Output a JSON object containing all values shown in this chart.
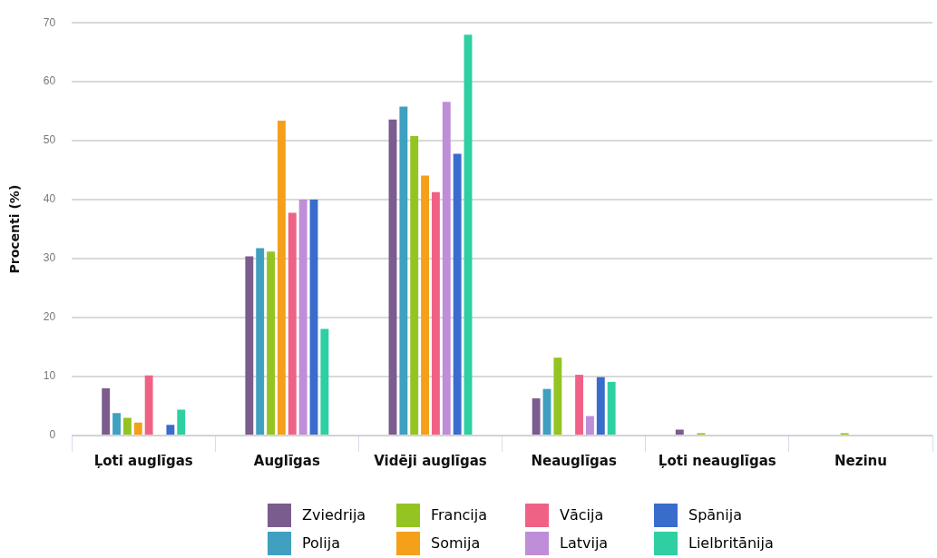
{
  "chart_data": {
    "type": "bar",
    "ylabel": "Procenti (%)",
    "categories": [
      "Ļoti auglīgas",
      "Auglīgas",
      "Vidēji auglīgas",
      "Neauglīgas",
      "Ļoti neauglīgas",
      "Nezinu"
    ],
    "series": [
      {
        "name": "Zviedrija",
        "color": "#7b5c8e",
        "values": [
          8,
          30.4,
          53.6,
          6.3,
          1,
          0
        ]
      },
      {
        "name": "Polija",
        "color": "#3fa0c0",
        "values": [
          3.8,
          31.8,
          55.8,
          7.9,
          0,
          0
        ]
      },
      {
        "name": "Francija",
        "color": "#93c422",
        "values": [
          3,
          31.2,
          50.8,
          13.2,
          0.4,
          0.4
        ]
      },
      {
        "name": "Somija",
        "color": "#f5a01a",
        "values": [
          2.2,
          53.4,
          44.1,
          0,
          0,
          0
        ]
      },
      {
        "name": "Vācija",
        "color": "#ef6286",
        "values": [
          10.2,
          37.8,
          41.3,
          10.3,
          0,
          0
        ]
      },
      {
        "name": "Latvija",
        "color": "#be8ed8",
        "values": [
          0,
          40,
          56.6,
          3.3,
          0,
          0
        ]
      },
      {
        "name": "Spānija",
        "color": "#3a6ccc",
        "values": [
          1.8,
          40,
          47.8,
          9.9,
          0,
          0
        ]
      },
      {
        "name": "Lielbritānija",
        "color": "#2ecfa3",
        "values": [
          4.4,
          18.1,
          68,
          9.1,
          0,
          0
        ]
      }
    ],
    "ylim": [
      0,
      70
    ],
    "yticks": [
      0,
      10,
      20,
      30,
      40,
      50,
      60,
      70
    ],
    "grid": "y",
    "legend": "bottom"
  }
}
